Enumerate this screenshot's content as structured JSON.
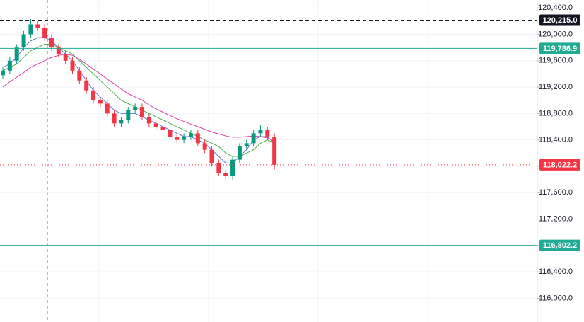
{
  "chart_data": {
    "type": "candlestick",
    "ylim": [
      115640,
      120520
    ],
    "yticks": [
      {
        "value": 116000,
        "label": "116,000.0"
      },
      {
        "value": 116400,
        "label": "116,400.0"
      },
      {
        "value": 116800,
        "label": "116,800.0"
      },
      {
        "value": 117200,
        "label": "117,200.0"
      },
      {
        "value": 117600,
        "label": "117,600.0"
      },
      {
        "value": 118000,
        "label": "118,000.0"
      },
      {
        "value": 118400,
        "label": "118,400.0"
      },
      {
        "value": 118800,
        "label": "118,800.0"
      },
      {
        "value": 119200,
        "label": "119,200.0"
      },
      {
        "value": 119600,
        "label": "119,600.0"
      },
      {
        "value": 120000,
        "label": "120,000.0"
      },
      {
        "value": 120400,
        "label": "120,400.0"
      }
    ],
    "up_color": "#089981",
    "down_color": "#f23645",
    "open": [
      119380,
      119450,
      119600,
      119800,
      120000,
      120150,
      120100,
      119950,
      119800,
      119700,
      119600,
      119450,
      119300,
      119150,
      119000,
      118950,
      118800,
      118650,
      118700,
      118850,
      118900,
      118750,
      118650,
      118600,
      118550,
      118450,
      118400,
      118450,
      118500,
      118350,
      118250,
      118050,
      117900,
      117850,
      118100,
      118300,
      118350,
      118500,
      118550,
      118450
    ],
    "high": [
      119500,
      119650,
      119850,
      120050,
      120230,
      120200,
      120150,
      120000,
      119850,
      119750,
      119650,
      119500,
      119350,
      119200,
      119050,
      119000,
      118850,
      118750,
      118900,
      118950,
      118950,
      118800,
      118700,
      118650,
      118600,
      118500,
      118500,
      118550,
      118550,
      118400,
      118300,
      118100,
      117950,
      118150,
      118350,
      118400,
      118550,
      118620,
      118600,
      118500
    ],
    "low": [
      119330,
      119400,
      119550,
      119750,
      119950,
      120050,
      119900,
      119750,
      119650,
      119550,
      119400,
      119250,
      119100,
      118950,
      118900,
      118750,
      118600,
      118600,
      118650,
      118800,
      118700,
      118600,
      118550,
      118500,
      118400,
      118350,
      118350,
      118400,
      118300,
      118200,
      118000,
      117850,
      117780,
      117800,
      118050,
      118250,
      118300,
      118450,
      118400,
      117950
    ],
    "close": [
      119450,
      119600,
      119800,
      120000,
      120150,
      120100,
      119950,
      119800,
      119700,
      119600,
      119450,
      119300,
      119150,
      119000,
      118950,
      118800,
      118650,
      118700,
      118850,
      118900,
      118750,
      118650,
      118600,
      118550,
      118450,
      118400,
      118450,
      118500,
      118350,
      118250,
      118050,
      117900,
      117850,
      118100,
      118300,
      118350,
      118500,
      118550,
      118450,
      118022
    ],
    "series": [
      {
        "color": "#6270d8",
        "values": [
          119500,
          119550,
          119650,
          119800,
          119900,
          119950,
          119950,
          119900,
          119800,
          119700,
          119600,
          119450,
          119300,
          119150,
          119050,
          118950,
          118850,
          118800,
          118800,
          118800,
          118750,
          118700,
          118650,
          118600,
          118550,
          118500,
          118450,
          118450,
          118400,
          118350,
          118250,
          118150,
          118050,
          118050,
          118150,
          118250,
          118400,
          118450,
          118450,
          118350
        ]
      },
      {
        "color": "#4caf50",
        "values": [
          119450,
          119500,
          119550,
          119650,
          119750,
          119800,
          119850,
          119850,
          119800,
          119750,
          119700,
          119600,
          119500,
          119400,
          119300,
          119200,
          119100,
          119000,
          118950,
          118900,
          118850,
          118800,
          118750,
          118700,
          118650,
          118600,
          118550,
          118500,
          118450,
          118400,
          118350,
          118300,
          118200,
          118150,
          118150,
          118200,
          118250,
          118350,
          118400,
          118350
        ]
      },
      {
        "color": "#d940a6",
        "values": [
          119200,
          119280,
          119350,
          119420,
          119500,
          119550,
          119600,
          119650,
          119680,
          119700,
          119680,
          119620,
          119550,
          119470,
          119400,
          119320,
          119250,
          119170,
          119100,
          119050,
          119000,
          118930,
          118870,
          118820,
          118770,
          118720,
          118680,
          118640,
          118600,
          118560,
          118520,
          118490,
          118460,
          118440,
          118440,
          118450,
          118460,
          118450,
          118430,
          118380
        ]
      }
    ],
    "levels": [
      {
        "value": 120215,
        "label": "120,215.0",
        "color": "#131722",
        "style": "dashed"
      },
      {
        "value": 119786.9,
        "label": "119,786.9",
        "color": "#22ab94",
        "style": "solid"
      },
      {
        "value": 118022.2,
        "label": "118,022.2",
        "color": "#f23645",
        "style": "dotted"
      },
      {
        "value": 116802.2,
        "label": "116,802.2",
        "color": "#22ab94",
        "style": "solid"
      }
    ]
  }
}
